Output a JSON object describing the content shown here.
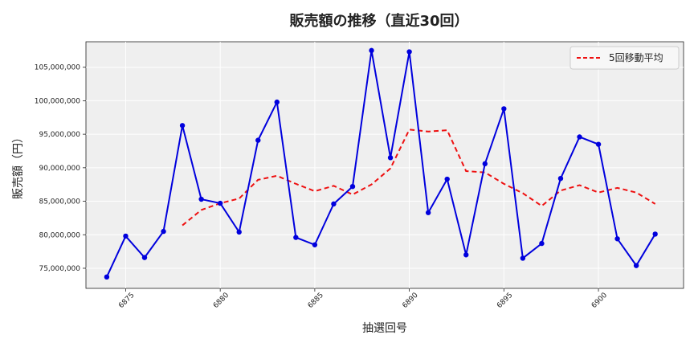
{
  "chart_data": {
    "type": "line",
    "title": "販売額の推移（直近30回）",
    "xlabel": "抽選回号",
    "ylabel": "販売額（円）",
    "x": [
      6874,
      6875,
      6876,
      6877,
      6878,
      6879,
      6880,
      6881,
      6882,
      6883,
      6884,
      6885,
      6886,
      6887,
      6888,
      6889,
      6890,
      6891,
      6892,
      6893,
      6894,
      6895,
      6896,
      6897,
      6898,
      6899,
      6900,
      6901,
      6902,
      6903
    ],
    "xticks": [
      6875,
      6880,
      6885,
      6890,
      6895,
      6900
    ],
    "xlim": [
      6872.9,
      6904.5
    ],
    "ylim": [
      72000000,
      108800000
    ],
    "yticks": [
      75000000,
      80000000,
      85000000,
      90000000,
      95000000,
      100000000,
      105000000
    ],
    "ytick_labels": [
      "75,000,000",
      "80,000,000",
      "85,000,000",
      "90,000,000",
      "95,000,000",
      "100,000,000",
      "105,000,000"
    ],
    "grid": true,
    "legend_position": "top-right",
    "series": [
      {
        "color": "#0000dd",
        "style": "solid-with-markers",
        "values": [
          73700000,
          79800000,
          76600000,
          80500000,
          96300000,
          85300000,
          84700000,
          80400000,
          94100000,
          99800000,
          79600000,
          78500000,
          84600000,
          87200000,
          107500000,
          91500000,
          107300000,
          83300000,
          88300000,
          77000000,
          90600000,
          98800000,
          76500000,
          78700000,
          88400000,
          94600000,
          93500000,
          79400000,
          75400000,
          80100000
        ]
      },
      {
        "name": "5回移動平均",
        "color": "#ee1111",
        "style": "dashed",
        "x": [
          6878,
          6879,
          6880,
          6881,
          6882,
          6883,
          6884,
          6885,
          6886,
          6887,
          6888,
          6889,
          6890,
          6891,
          6892,
          6893,
          6894,
          6895,
          6896,
          6897,
          6898,
          6899,
          6900,
          6901,
          6902,
          6903
        ],
        "values": [
          81400000,
          83700000,
          84700000,
          85400000,
          88200000,
          88800000,
          87600000,
          86500000,
          87300000,
          86000000,
          87500000,
          89900000,
          95700000,
          95400000,
          95600000,
          89500000,
          89300000,
          87600000,
          86200000,
          84300000,
          86600000,
          87400000,
          86300000,
          87000000,
          86300000,
          84600000
        ]
      }
    ]
  }
}
